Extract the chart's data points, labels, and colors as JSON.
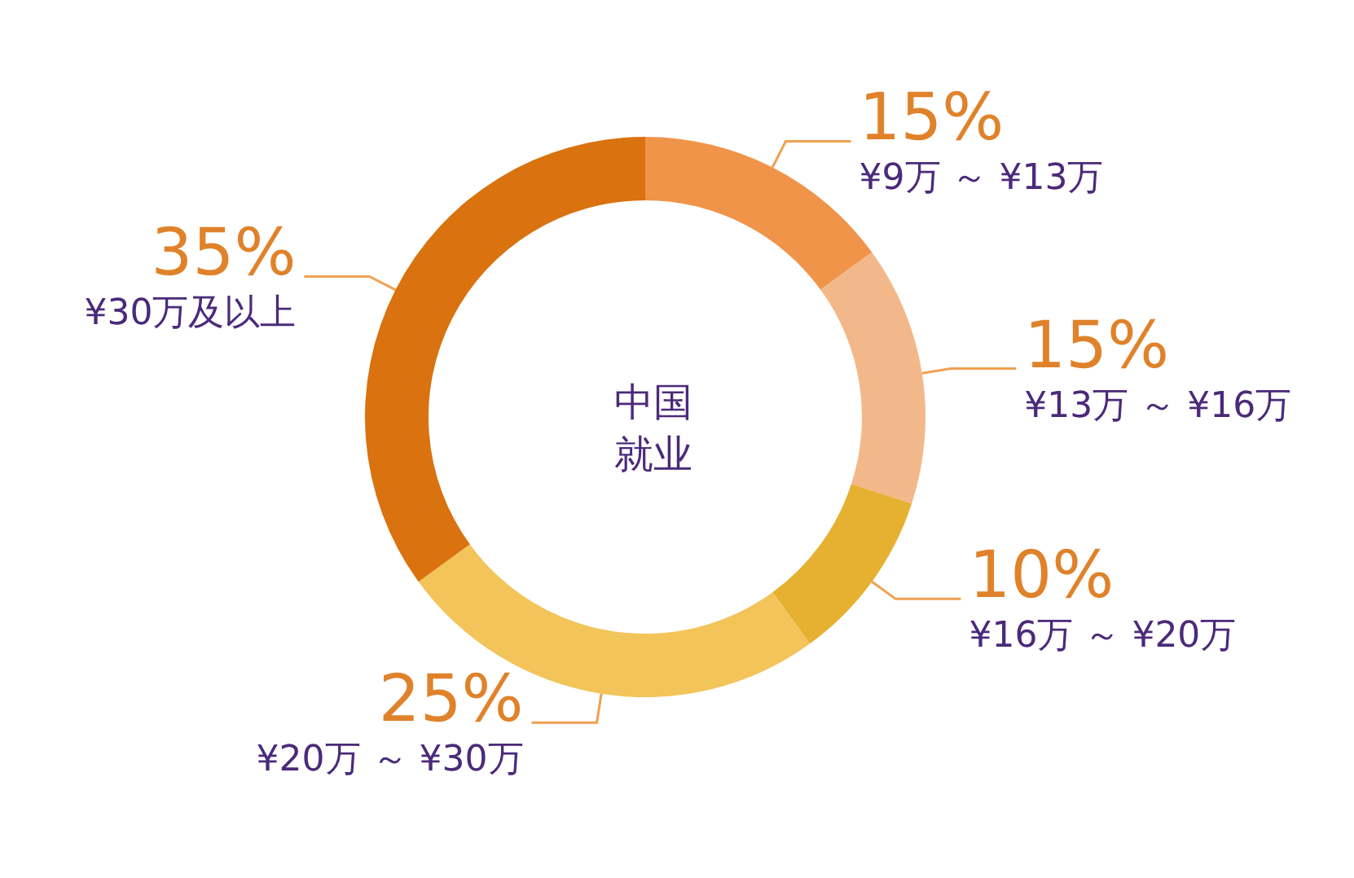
{
  "chart_data": {
    "type": "donut",
    "title": "中国就业",
    "categories": [
      "¥9万 ～ ¥13万",
      "¥13万 ～ ¥16万",
      "¥16万 ～ ¥20万",
      "¥20万 ～ ¥30万",
      "¥30万及以上"
    ],
    "values": [
      15,
      15,
      10,
      25,
      35
    ],
    "value_labels": [
      "15%",
      "15%",
      "10%",
      "25%",
      "35%"
    ],
    "colors": [
      "#f0944a",
      "#f3b88a",
      "#e6b030",
      "#f2c45a",
      "#d9720f"
    ],
    "legend": false
  }
}
